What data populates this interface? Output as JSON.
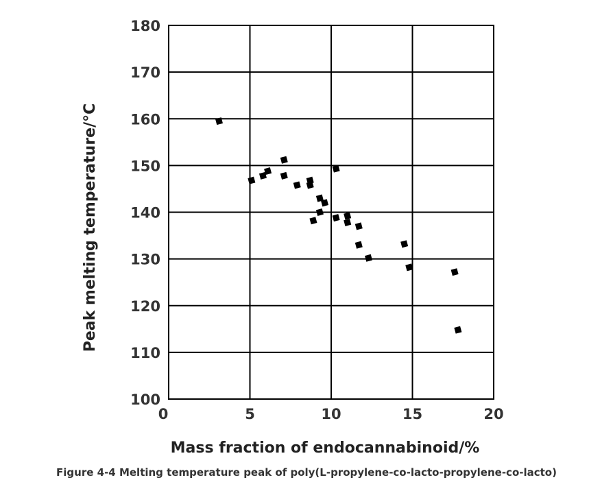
{
  "caption": "Figure 4-4 Melting temperature peak of poly(L-propylene-co-lacto-propylene-co-lacto)",
  "chart_data": {
    "type": "scatter",
    "xlabel": "Mass fraction of endocannabinoid/%",
    "ylabel": "Peak melting temperature/°C",
    "xlim": [
      0,
      20
    ],
    "ylim": [
      100,
      180
    ],
    "xticks": [
      0,
      5,
      10,
      15,
      20
    ],
    "yticks": [
      100,
      110,
      120,
      130,
      140,
      150,
      160,
      170,
      180
    ],
    "grid": true,
    "marker_color": "#000000",
    "series": [
      {
        "points": [
          {
            "x": 3.1,
            "y": 159.5
          },
          {
            "x": 5.1,
            "y": 146.8
          },
          {
            "x": 5.8,
            "y": 147.8
          },
          {
            "x": 6.1,
            "y": 148.8
          },
          {
            "x": 7.1,
            "y": 151.2
          },
          {
            "x": 7.1,
            "y": 147.8
          },
          {
            "x": 7.9,
            "y": 145.8
          },
          {
            "x": 8.7,
            "y": 146.8
          },
          {
            "x": 8.7,
            "y": 145.8
          },
          {
            "x": 8.9,
            "y": 138.2
          },
          {
            "x": 9.3,
            "y": 143.0
          },
          {
            "x": 9.6,
            "y": 142.0
          },
          {
            "x": 9.3,
            "y": 140.0
          },
          {
            "x": 10.3,
            "y": 149.3
          },
          {
            "x": 10.3,
            "y": 138.8
          },
          {
            "x": 11.0,
            "y": 139.2
          },
          {
            "x": 11.0,
            "y": 137.8
          },
          {
            "x": 11.7,
            "y": 137.0
          },
          {
            "x": 11.7,
            "y": 133.0
          },
          {
            "x": 12.3,
            "y": 130.2
          },
          {
            "x": 14.5,
            "y": 133.2
          },
          {
            "x": 14.8,
            "y": 128.2
          },
          {
            "x": 17.6,
            "y": 127.2
          },
          {
            "x": 17.8,
            "y": 114.8
          }
        ]
      }
    ]
  }
}
